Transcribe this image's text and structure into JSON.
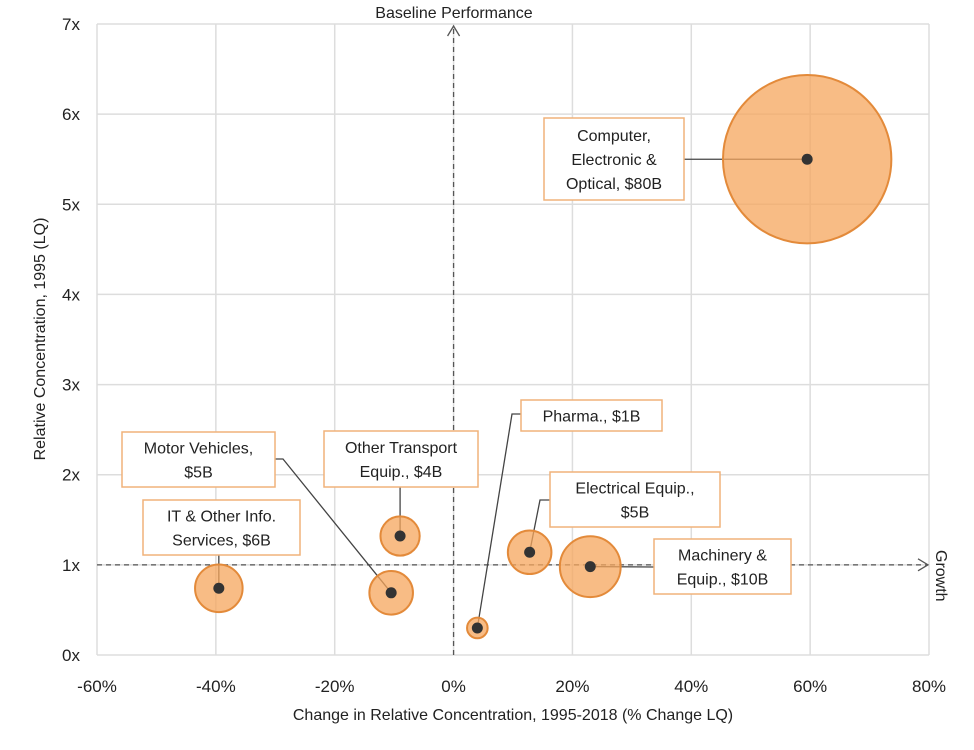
{
  "chart_data": {
    "type": "scatter",
    "subtype": "bubble",
    "title": "",
    "xlabel": "Change in Relative Concentration, 1995-2018 (% Change LQ)",
    "ylabel": "Relative Concentration, 1995 (LQ)",
    "xlim": [
      -60,
      80
    ],
    "ylim": [
      0,
      7
    ],
    "xticks": [
      "-60%",
      "-40%",
      "-20%",
      "0%",
      "20%",
      "40%",
      "60%",
      "80%"
    ],
    "yticks": [
      "0x",
      "1x",
      "2x",
      "3x",
      "4x",
      "5x",
      "6x",
      "7x"
    ],
    "grid": true,
    "reference_lines": {
      "vertical": {
        "x": 0,
        "label": "Baseline Performance"
      },
      "horizontal": {
        "y": 1,
        "label": "Growth"
      }
    },
    "colors": {
      "bubble_fill": "#f6a65c",
      "bubble_stroke": "#e38a3a",
      "label_border": "#f0b27a",
      "point": "#333333"
    },
    "points": [
      {
        "label_lines": [
          "Computer,",
          "Electronic &",
          "Optical, $80B"
        ],
        "x": 59.5,
        "y": 5.5,
        "size_billion_usd": 80
      },
      {
        "label_lines": [
          "Machinery &",
          "Equip., $10B"
        ],
        "x": 23,
        "y": 0.98,
        "size_billion_usd": 10
      },
      {
        "label_lines": [
          "Electrical Equip.,",
          "$5B"
        ],
        "x": 12.8,
        "y": 1.14,
        "size_billion_usd": 5
      },
      {
        "label_lines": [
          "Pharma., $1B"
        ],
        "x": 4,
        "y": 0.3,
        "size_billion_usd": 1
      },
      {
        "label_lines": [
          "Other Transport",
          "Equip., $4B"
        ],
        "x": -9,
        "y": 1.32,
        "size_billion_usd": 4
      },
      {
        "label_lines": [
          "Motor Vehicles,",
          "$5B"
        ],
        "x": -10.5,
        "y": 0.69,
        "size_billion_usd": 5
      },
      {
        "label_lines": [
          "IT & Other Info.",
          "Services, $6B"
        ],
        "x": -39.5,
        "y": 0.74,
        "size_billion_usd": 6
      }
    ]
  }
}
